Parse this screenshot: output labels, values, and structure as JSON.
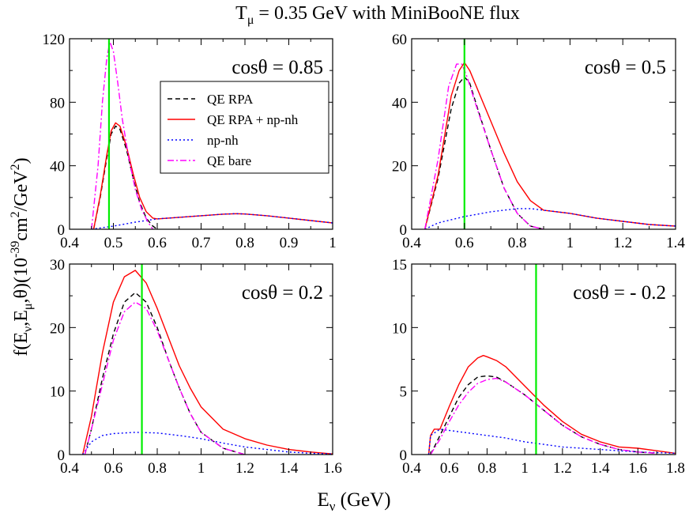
{
  "figure": {
    "title_prefix": "T",
    "title_sub": "μ",
    "title_rest": " = 0.35 GeV with MiniBooNE flux",
    "xlabel_main": "E",
    "xlabel_sub": "ν",
    "xlabel_unit": " (GeV)",
    "ylabel_parts": {
      "a": "f(E",
      "b": "ν",
      "c": ",E",
      "d": "μ",
      "e": ",θ)(10",
      "f": "-39",
      "g": "cm",
      "h": "2",
      "i": "/GeV",
      "j": "2",
      "k": ")"
    },
    "legend": [
      {
        "label": "QE RPA",
        "color": "#000000",
        "dash": "6,4"
      },
      {
        "label": "QE RPA + np-nh",
        "color": "#ff0000",
        "dash": ""
      },
      {
        "label": "np-nh",
        "color": "#0000ff",
        "dash": "2,3"
      },
      {
        "label": "QE bare",
        "color": "#ff00ff",
        "dash": "8,3,2,3"
      }
    ],
    "marker_color": "#00ee00"
  },
  "chart_data": [
    {
      "type": "line",
      "annotation": "cosθ = 0.85",
      "xlim": [
        0.4,
        1.0
      ],
      "ylim": [
        0,
        120
      ],
      "xticks": [
        0.4,
        0.5,
        0.6,
        0.7,
        0.8,
        0.9,
        1.0
      ],
      "xtick_labels": [
        "0.4",
        "0.5",
        "0.6",
        "0.7",
        "0.8",
        "0.9",
        "1"
      ],
      "yticks": [
        0,
        40,
        80,
        120
      ],
      "ytick_labels": [
        "0",
        "40",
        "80",
        "120"
      ],
      "marker_x": 0.49,
      "series": [
        {
          "name": "QE RPA",
          "x": [
            0.455,
            0.47,
            0.485,
            0.495,
            0.505,
            0.515,
            0.53,
            0.545,
            0.56,
            0.575,
            0.59,
            0.6
          ],
          "y": [
            0,
            20,
            45,
            60,
            65,
            63,
            50,
            32,
            17,
            7,
            2,
            0
          ]
        },
        {
          "name": "QE RPA + np-nh",
          "x": [
            0.455,
            0.47,
            0.485,
            0.495,
            0.505,
            0.515,
            0.53,
            0.545,
            0.56,
            0.575,
            0.59,
            0.6,
            0.65,
            0.7,
            0.75,
            0.78,
            0.8,
            0.85,
            0.9,
            0.95,
            1.0
          ],
          "y": [
            0,
            21,
            47,
            62,
            67,
            65,
            52,
            35,
            20,
            11,
            7,
            6.5,
            7.5,
            8.5,
            9.5,
            9.8,
            9.6,
            8.5,
            7,
            5.5,
            4
          ]
        },
        {
          "name": "np-nh",
          "x": [
            0.45,
            0.5,
            0.55,
            0.6,
            0.65,
            0.7,
            0.75,
            0.78,
            0.8,
            0.85,
            0.9,
            0.95,
            1.0
          ],
          "y": [
            0,
            2,
            4.5,
            6.5,
            7.5,
            8.5,
            9.5,
            9.8,
            9.6,
            8.5,
            7,
            5.5,
            4
          ]
        },
        {
          "name": "QE bare",
          "x": [
            0.45,
            0.465,
            0.475,
            0.485,
            0.492,
            0.5,
            0.51,
            0.52,
            0.535,
            0.55,
            0.565,
            0.58,
            0.59
          ],
          "y": [
            0,
            40,
            80,
            108,
            118,
            112,
            92,
            70,
            45,
            25,
            12,
            4,
            0
          ]
        }
      ]
    },
    {
      "type": "line",
      "annotation": "cosθ = 0.5",
      "xlim": [
        0.4,
        1.4
      ],
      "ylim": [
        0,
        60
      ],
      "xticks": [
        0.4,
        0.6,
        0.8,
        1.0,
        1.2,
        1.4
      ],
      "xtick_labels": [
        "0.4",
        "0.6",
        "0.8",
        "1",
        "1.2",
        "1.4"
      ],
      "yticks": [
        0,
        20,
        40,
        60
      ],
      "ytick_labels": [
        "0",
        "20",
        "40",
        "60"
      ],
      "marker_x": 0.6,
      "series": [
        {
          "name": "QE RPA",
          "x": [
            0.45,
            0.5,
            0.55,
            0.58,
            0.6,
            0.62,
            0.65,
            0.7,
            0.75,
            0.8,
            0.85,
            0.9
          ],
          "y": [
            0,
            16,
            38,
            46,
            48,
            46,
            38,
            25,
            13,
            5,
            1,
            0
          ]
        },
        {
          "name": "QE RPA + np-nh",
          "x": [
            0.45,
            0.5,
            0.55,
            0.58,
            0.6,
            0.62,
            0.65,
            0.7,
            0.75,
            0.8,
            0.85,
            0.9,
            1.0,
            1.1,
            1.2,
            1.3,
            1.4
          ],
          "y": [
            0,
            17,
            42,
            50,
            52.5,
            50,
            44,
            34,
            24,
            15,
            9,
            6,
            5,
            3.5,
            2.5,
            1.5,
            1
          ]
        },
        {
          "name": "np-nh",
          "x": [
            0.45,
            0.5,
            0.6,
            0.7,
            0.8,
            0.85,
            0.9,
            1.0,
            1.1,
            1.2,
            1.3,
            1.4
          ],
          "y": [
            0,
            2,
            4,
            5.5,
            6.5,
            6.5,
            6,
            5,
            3.5,
            2.5,
            1.5,
            1
          ]
        },
        {
          "name": "QE bare",
          "x": [
            0.45,
            0.5,
            0.54,
            0.57,
            0.59,
            0.61,
            0.64,
            0.7,
            0.75,
            0.8,
            0.85,
            0.9
          ],
          "y": [
            0,
            22,
            45,
            52,
            52,
            48,
            40,
            25,
            13,
            5,
            1,
            0
          ]
        }
      ]
    },
    {
      "type": "line",
      "annotation": "cosθ = 0.2",
      "xlim": [
        0.4,
        1.6
      ],
      "ylim": [
        0,
        30
      ],
      "xticks": [
        0.4,
        0.6,
        0.8,
        1.0,
        1.2,
        1.4,
        1.6
      ],
      "xtick_labels": [
        "0.4",
        "0.6",
        "0.8",
        "1",
        "1.2",
        "1.4",
        "1.6"
      ],
      "yticks": [
        0,
        10,
        20,
        30
      ],
      "ytick_labels": [
        "0",
        "10",
        "20",
        "30"
      ],
      "marker_x": 0.73,
      "series": [
        {
          "name": "QE RPA",
          "x": [
            0.47,
            0.5,
            0.55,
            0.6,
            0.65,
            0.7,
            0.75,
            0.8,
            0.85,
            0.9,
            0.95,
            1.0,
            1.1,
            1.2
          ],
          "y": [
            0,
            4,
            12,
            19,
            24,
            25.5,
            24,
            20,
            15,
            10.5,
            6.5,
            3.5,
            1,
            0
          ]
        },
        {
          "name": "QE RPA + np-nh",
          "x": [
            0.46,
            0.5,
            0.55,
            0.6,
            0.65,
            0.7,
            0.75,
            0.8,
            0.85,
            0.9,
            0.95,
            1.0,
            1.1,
            1.2,
            1.3,
            1.4,
            1.5,
            1.6
          ],
          "y": [
            0,
            6,
            16,
            24,
            28,
            29,
            27,
            23,
            18.5,
            14,
            10.5,
            7.5,
            4,
            2.5,
            1.5,
            0.8,
            0.4,
            0.1
          ]
        },
        {
          "name": "np-nh",
          "x": [
            0.46,
            0.5,
            0.55,
            0.6,
            0.7,
            0.8,
            0.9,
            1.0,
            1.1,
            1.2,
            1.3,
            1.4,
            1.5,
            1.6
          ],
          "y": [
            0,
            2,
            3,
            3.3,
            3.5,
            3.4,
            3,
            2.5,
            1.8,
            1.2,
            0.8,
            0.4,
            0.2,
            0.1
          ]
        },
        {
          "name": "QE bare",
          "x": [
            0.47,
            0.5,
            0.55,
            0.6,
            0.65,
            0.7,
            0.75,
            0.8,
            0.85,
            0.9,
            0.95,
            1.0,
            1.1,
            1.2
          ],
          "y": [
            0,
            4,
            11,
            18,
            22.5,
            24,
            23,
            19.5,
            15,
            10.5,
            6.5,
            3.5,
            1,
            0
          ]
        }
      ]
    },
    {
      "type": "line",
      "annotation": "cosθ = - 0.2",
      "xlim": [
        0.4,
        1.8
      ],
      "ylim": [
        0,
        15
      ],
      "xticks": [
        0.4,
        0.6,
        0.8,
        1.0,
        1.2,
        1.4,
        1.6,
        1.8
      ],
      "xtick_labels": [
        "0.4",
        "0.6",
        "0.8",
        "1",
        "1.2",
        "1.4",
        "1.6",
        "1.8"
      ],
      "yticks": [
        0,
        5,
        10,
        15
      ],
      "ytick_labels": [
        "0",
        "5",
        "10",
        "15"
      ],
      "marker_x": 1.06,
      "series": [
        {
          "name": "QE RPA",
          "x": [
            0.5,
            0.55,
            0.6,
            0.65,
            0.7,
            0.75,
            0.8,
            0.85,
            0.9,
            1.0,
            1.1,
            1.2,
            1.3,
            1.4,
            1.5,
            1.6,
            1.7
          ],
          "y": [
            0,
            1.5,
            3,
            4.5,
            5.5,
            6.1,
            6.2,
            6.1,
            5.7,
            4.7,
            3.5,
            2.3,
            1.4,
            0.8,
            0.4,
            0.2,
            0.1
          ]
        },
        {
          "name": "QE RPA + np-nh",
          "x": [
            0.49,
            0.5,
            0.52,
            0.55,
            0.6,
            0.65,
            0.7,
            0.75,
            0.78,
            0.8,
            0.85,
            0.9,
            1.0,
            1.1,
            1.2,
            1.3,
            1.4,
            1.5,
            1.6,
            1.7,
            1.8
          ],
          "y": [
            0,
            1.5,
            2,
            2,
            3.8,
            5.5,
            6.9,
            7.6,
            7.8,
            7.7,
            7.4,
            6.9,
            5.4,
            3.9,
            2.6,
            1.6,
            1.0,
            0.6,
            0.5,
            0.3,
            0.1
          ]
        },
        {
          "name": "np-nh",
          "x": [
            0.49,
            0.5,
            0.55,
            0.6,
            0.7,
            0.8,
            0.9,
            1.0,
            1.1,
            1.2,
            1.3,
            1.4,
            1.5,
            1.6,
            1.7,
            1.8
          ],
          "y": [
            0,
            1.5,
            2,
            1.9,
            1.7,
            1.5,
            1.3,
            1.0,
            0.8,
            0.6,
            0.5,
            0.4,
            0.3,
            0.2,
            0.15,
            0.1
          ]
        },
        {
          "name": "QE bare",
          "x": [
            0.5,
            0.55,
            0.6,
            0.65,
            0.7,
            0.75,
            0.8,
            0.85,
            0.9,
            1.0,
            1.1,
            1.2,
            1.3,
            1.4,
            1.5,
            1.6,
            1.7
          ],
          "y": [
            0,
            1.2,
            2.6,
            3.9,
            4.9,
            5.6,
            5.9,
            6.0,
            5.7,
            4.7,
            3.5,
            2.3,
            1.4,
            0.8,
            0.4,
            0.2,
            0.1
          ]
        }
      ]
    }
  ]
}
